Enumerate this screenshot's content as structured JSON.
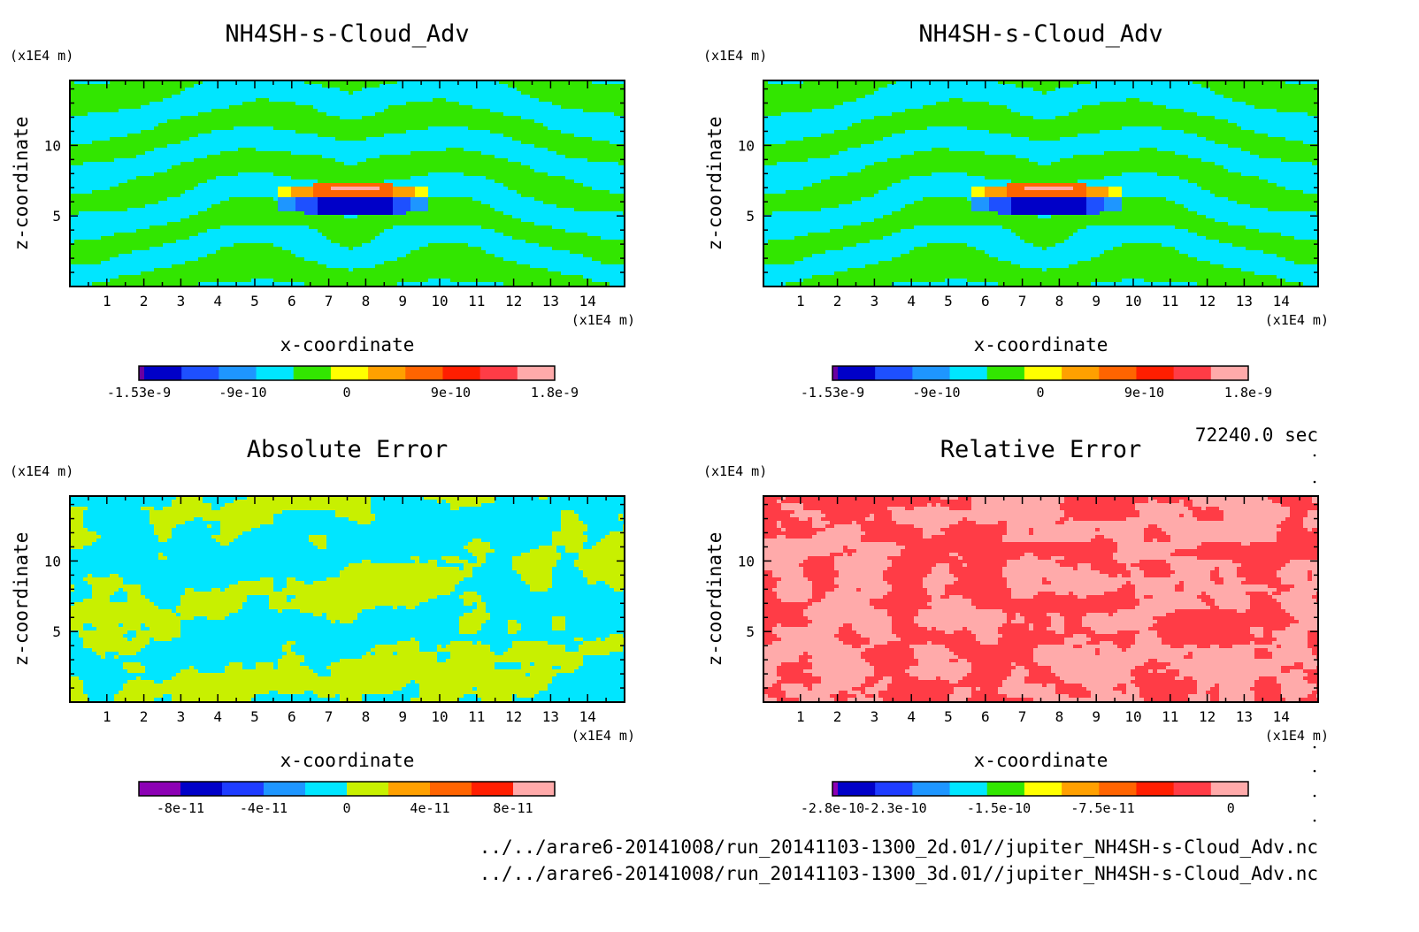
{
  "time_label": "72240.0 sec",
  "files": [
    "../../arare6-20141008/run_20141103-1300_2d.01//jupiter_NH4SH-s-Cloud_Adv.nc",
    "../../arare6-20141008/run_20141103-1300_3d.01//jupiter_NH4SH-s-Cloud_Adv.nc"
  ],
  "colors": {
    "cmap_main": [
      "#6a00a0",
      "#0000c8",
      "#1e50ff",
      "#1e96ff",
      "#00e6ff",
      "#32e600",
      "#ffff00",
      "#ffa000",
      "#ff6400",
      "#ff1e00",
      "#ff3c46",
      "#ffaaaa"
    ],
    "cmap_abs": [
      "#8c00b4",
      "#0000c8",
      "#1e3cff",
      "#1e96ff",
      "#00e6ff",
      "#c8f000",
      "#ffa000",
      "#ff6400",
      "#ff1e00",
      "#ffaaaa"
    ],
    "cmap_rel": [
      "#8c00b4",
      "#0000c8",
      "#1e3cff",
      "#1e96ff",
      "#00e6ff",
      "#32e600",
      "#ffff00",
      "#ffa000",
      "#ff6400",
      "#ff1e00",
      "#ff3c46",
      "#ffaaaa"
    ]
  },
  "chart_data": [
    {
      "type": "heatmap",
      "title": "NH4SH-s-Cloud_Adv",
      "xlabel": "x-coordinate",
      "ylabel": "z-coordinate",
      "xunit": "(x1E4 m)",
      "yunit": "(x1E4 m)",
      "xticks": [
        1,
        2,
        3,
        4,
        5,
        6,
        7,
        8,
        9,
        10,
        11,
        12,
        13,
        14
      ],
      "yticks": [
        5,
        10
      ],
      "xlim": [
        0,
        15
      ],
      "ylim": [
        0,
        14.6
      ],
      "field": "cloud",
      "colorbar_labels": [
        "-1.53e-9",
        "-9e-10",
        "0",
        "9e-10",
        "1.8e-9"
      ],
      "colorbar_label_pos": [
        0,
        0.25,
        0.5,
        0.75,
        1.0
      ]
    },
    {
      "type": "heatmap",
      "title": "NH4SH-s-Cloud_Adv",
      "xlabel": "x-coordinate",
      "ylabel": "z-coordinate",
      "xunit": "(x1E4 m)",
      "yunit": "(x1E4 m)",
      "xticks": [
        1,
        2,
        3,
        4,
        5,
        6,
        7,
        8,
        9,
        10,
        11,
        12,
        13,
        14
      ],
      "yticks": [
        5,
        10
      ],
      "xlim": [
        0,
        15
      ],
      "ylim": [
        0,
        14.6
      ],
      "field": "cloud",
      "colorbar_labels": [
        "-1.53e-9",
        "-9e-10",
        "0",
        "9e-10",
        "1.8e-9"
      ],
      "colorbar_label_pos": [
        0,
        0.25,
        0.5,
        0.75,
        1.0
      ]
    },
    {
      "type": "heatmap",
      "title": "Absolute Error",
      "xlabel": "x-coordinate",
      "ylabel": "z-coordinate",
      "xunit": "(x1E4 m)",
      "yunit": "(x1E4 m)",
      "xticks": [
        1,
        2,
        3,
        4,
        5,
        6,
        7,
        8,
        9,
        10,
        11,
        12,
        13,
        14
      ],
      "yticks": [
        5,
        10
      ],
      "xlim": [
        0,
        15
      ],
      "ylim": [
        0,
        14.6
      ],
      "field": "abs",
      "colorbar_labels": [
        "-8e-11",
        "-4e-11",
        "0",
        "4e-11",
        "8e-11"
      ],
      "colorbar_label_pos": [
        0.1,
        0.3,
        0.5,
        0.7,
        0.9
      ]
    },
    {
      "type": "heatmap",
      "title": "Relative Error",
      "xlabel": "x-coordinate",
      "ylabel": "z-coordinate",
      "xunit": "(x1E4 m)",
      "yunit": "(x1E4 m)",
      "xticks": [
        1,
        2,
        3,
        4,
        5,
        6,
        7,
        8,
        9,
        10,
        11,
        12,
        13,
        14
      ],
      "yticks": [
        5,
        10
      ],
      "xlim": [
        0,
        15
      ],
      "ylim": [
        0,
        14.6
      ],
      "field": "rel",
      "colorbar_labels": [
        "-2.8e-10",
        "-2.3e-10",
        "-1.5e-10",
        "-7.5e-11",
        "0"
      ],
      "colorbar_label_pos": [
        0,
        0.15,
        0.4,
        0.65,
        0.958
      ]
    }
  ]
}
